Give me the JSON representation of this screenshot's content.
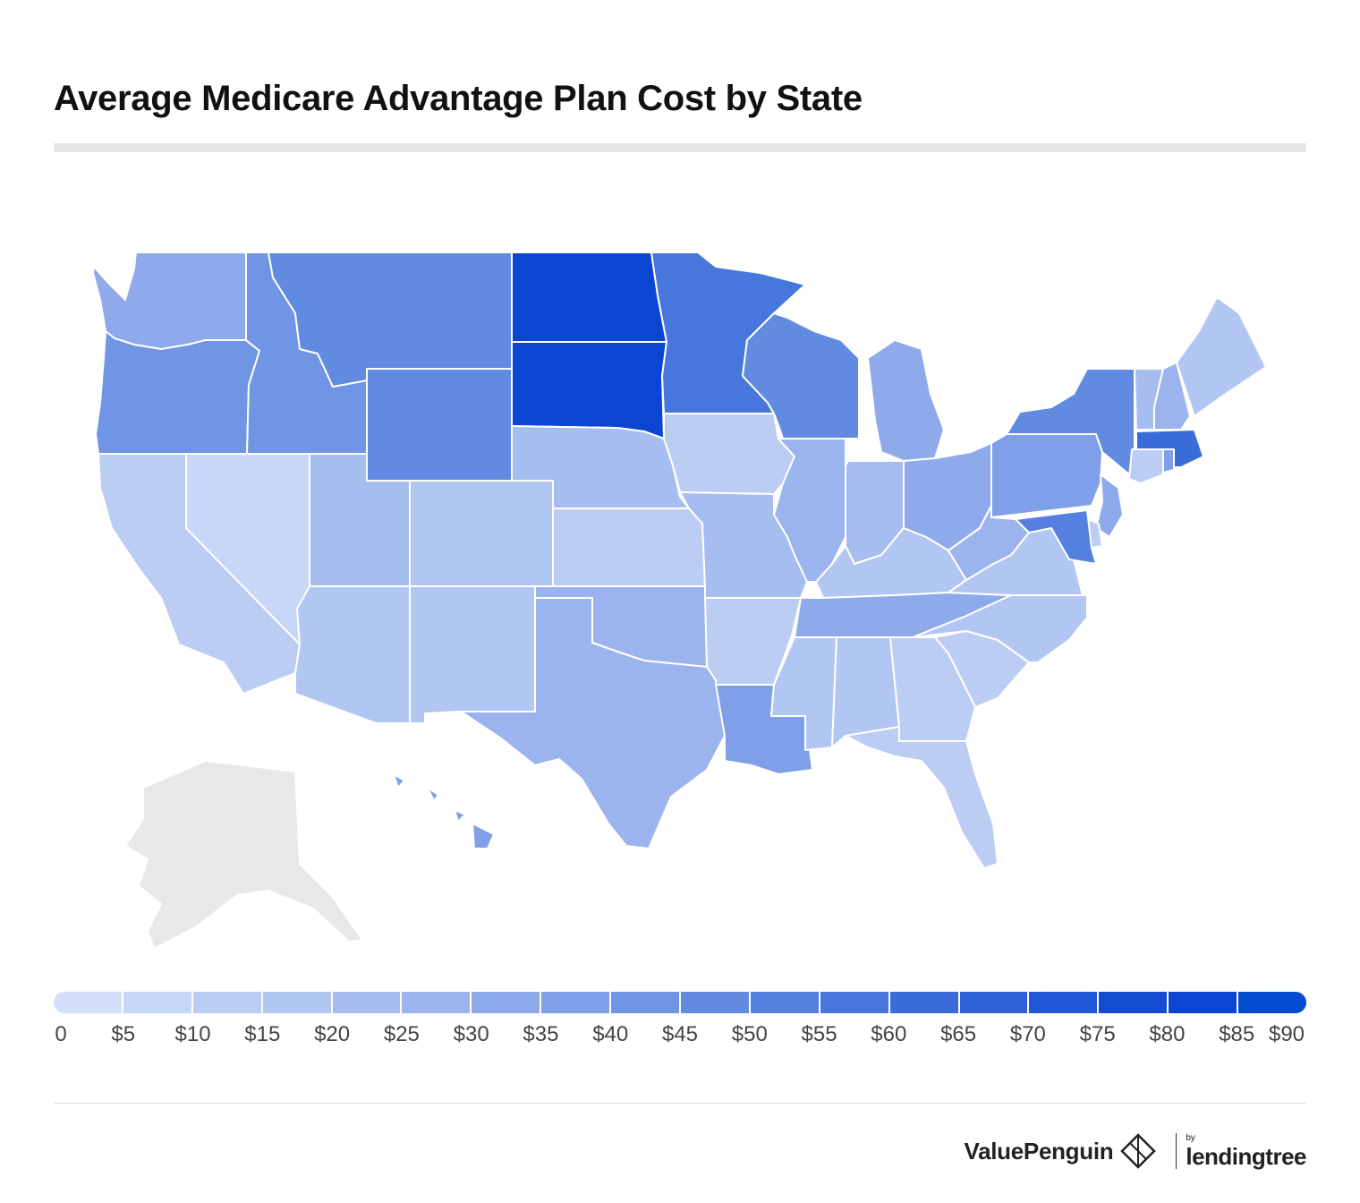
{
  "title": "Average Medicare Advantage Plan Cost by State",
  "colors": {
    "no_data": "#e8e8e8",
    "scale": [
      "#d4e0fb",
      "#c8d6f7",
      "#bccdf4",
      "#b2c6f3",
      "#a6bdf0",
      "#9bb4ed",
      "#8eaaea",
      "#7fa0e8",
      "#7095e4",
      "#618ae1",
      "#5580df",
      "#4776dc",
      "#3a6cd9",
      "#2d61d6",
      "#2157d4",
      "#144dd1",
      "#0a46d1",
      "#034ccf"
    ]
  },
  "legend": {
    "ticks": [
      "0",
      "$5",
      "$10",
      "$15",
      "$20",
      "$25",
      "$30",
      "$35",
      "$40",
      "$45",
      "$50",
      "$55",
      "$60",
      "$65",
      "$70",
      "$75",
      "$80",
      "$85",
      "$90"
    ]
  },
  "map": {
    "unit": "USD per month",
    "states": [
      {
        "name": "Washington",
        "value": 37
      },
      {
        "name": "Oregon",
        "value": 45
      },
      {
        "name": "California",
        "value": 13
      },
      {
        "name": "Nevada",
        "value": 8
      },
      {
        "name": "Idaho",
        "value": 47
      },
      {
        "name": "Montana",
        "value": 50
      },
      {
        "name": "Wyoming",
        "value": 50
      },
      {
        "name": "Utah",
        "value": 22
      },
      {
        "name": "Colorado",
        "value": 18
      },
      {
        "name": "Arizona",
        "value": 17
      },
      {
        "name": "New Mexico",
        "value": 17
      },
      {
        "name": "North Dakota",
        "value": 89
      },
      {
        "name": "South Dakota",
        "value": 89
      },
      {
        "name": "Nebraska",
        "value": 23
      },
      {
        "name": "Kansas",
        "value": 13
      },
      {
        "name": "Oklahoma",
        "value": 28
      },
      {
        "name": "Texas",
        "value": 30
      },
      {
        "name": "Minnesota",
        "value": 63
      },
      {
        "name": "Iowa",
        "value": 12
      },
      {
        "name": "Missouri",
        "value": 23
      },
      {
        "name": "Arkansas",
        "value": 13
      },
      {
        "name": "Louisiana",
        "value": 40
      },
      {
        "name": "Wisconsin",
        "value": 50
      },
      {
        "name": "Illinois",
        "value": 27
      },
      {
        "name": "Michigan",
        "value": 33
      },
      {
        "name": "Indiana",
        "value": 23
      },
      {
        "name": "Ohio",
        "value": 33
      },
      {
        "name": "Kentucky",
        "value": 18
      },
      {
        "name": "Tennessee",
        "value": 37
      },
      {
        "name": "Mississippi",
        "value": 17
      },
      {
        "name": "Alabama",
        "value": 17
      },
      {
        "name": "Georgia",
        "value": 13
      },
      {
        "name": "Florida",
        "value": 12
      },
      {
        "name": "South Carolina",
        "value": 13
      },
      {
        "name": "North Carolina",
        "value": 17
      },
      {
        "name": "Virginia",
        "value": 18
      },
      {
        "name": "West Virginia",
        "value": 30
      },
      {
        "name": "Pennsylvania",
        "value": 40
      },
      {
        "name": "New York",
        "value": 50
      },
      {
        "name": "New Jersey",
        "value": 35
      },
      {
        "name": "Delaware",
        "value": 12
      },
      {
        "name": "Maryland",
        "value": 55
      },
      {
        "name": "Vermont",
        "value": 23
      },
      {
        "name": "New Hampshire",
        "value": 28
      },
      {
        "name": "Maine",
        "value": 17
      },
      {
        "name": "Massachusetts",
        "value": 68
      },
      {
        "name": "Connecticut",
        "value": 12
      },
      {
        "name": "Rhode Island",
        "value": 40
      },
      {
        "name": "Hawaii",
        "value": 38
      },
      {
        "name": "Alaska",
        "value": null
      }
    ]
  },
  "brand": {
    "name": "ValuePenguin",
    "by": "by",
    "partner": "lendingtree"
  }
}
